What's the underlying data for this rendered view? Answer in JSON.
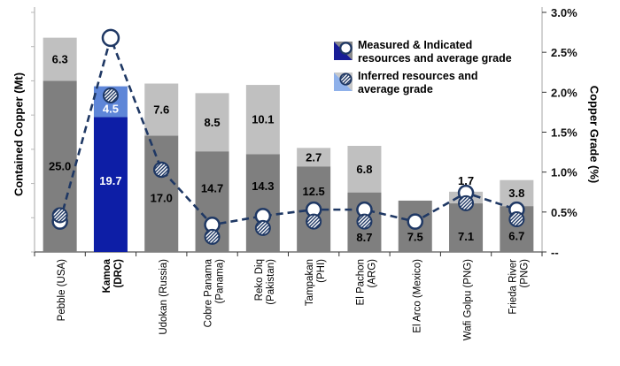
{
  "colors": {
    "bar_dark_gray": "#7f7f7f",
    "bar_light_gray": "#c0c0c0",
    "kamoa_dark_blue": "#0d1ea6",
    "kamoa_light_blue": "#5e86d8",
    "legend_dark_blue": "#181d96",
    "legend_gray": "#8a8a8a",
    "legend_light_blue": "#8fb1ea",
    "legend_light_gray": "#c8c8c8",
    "line_navy": "#1f3864",
    "axis_line_gray": "#a6a6a6",
    "bottom_axis": "#595959",
    "label_on_blue": "#ffffff",
    "label_on_gray": "#000000"
  },
  "chart_data": {
    "type": "bar",
    "subtype": "stacked-bar-with-line-overlay",
    "categories": [
      "Pebble (USA)",
      "Kamoa\n(DRC)",
      "Udokan (Russia)",
      "Cobre Panama\n(Panama)",
      "Reko Diq\n(Pakistan)",
      "Tampakan\n(PHI)",
      "El Pachon\n(ARG)",
      "El Arco (Mexico)",
      "Wafi Golpu (PNG)",
      "Frieda River\n(PNG)"
    ],
    "highlight_category": "Kamoa (DRC)",
    "bar_series": [
      {
        "name": "Measured & Indicated resources (Mt)",
        "values": [
          25.0,
          19.7,
          17.0,
          14.7,
          14.3,
          12.5,
          8.7,
          7.5,
          7.1,
          6.7
        ]
      },
      {
        "name": "Inferred resources (Mt)",
        "values": [
          6.3,
          4.5,
          7.6,
          8.5,
          10.1,
          2.7,
          6.8,
          null,
          1.7,
          3.8
        ]
      }
    ],
    "line_series": [
      {
        "name": "Measured & Indicated average grade (%)",
        "marker": "open-circle",
        "values": [
          0.38,
          2.68,
          1.03,
          0.34,
          0.45,
          0.53,
          0.53,
          0.38,
          0.74,
          0.53
        ]
      },
      {
        "name": "Inferred average grade (%)",
        "marker": "hatched-circle",
        "values": [
          0.46,
          1.96,
          1.03,
          0.19,
          0.3,
          0.38,
          0.38,
          null,
          0.61,
          0.41
        ]
      }
    ],
    "left_axis": {
      "label": "Contained Copper (Mt)",
      "range": [
        0,
        35
      ],
      "tick_labels_visible": false
    },
    "right_axis": {
      "label": "Copper Grade (%)",
      "range": [
        0,
        3
      ],
      "ticks": [
        "3.0%",
        "2.5%",
        "2.0%",
        "1.5%",
        "1.0%",
        "0.5%",
        "--"
      ]
    },
    "legend": [
      {
        "label": "Measured & Indicated\nresources and average grade",
        "icon": "dark-blue-gray-split-square-open-circle"
      },
      {
        "label": "Inferred resources and\naverage grade",
        "icon": "light-blue-gray-split-square-hatched-circle"
      }
    ],
    "grid": false,
    "legend_position": "top-right",
    "title": ""
  }
}
